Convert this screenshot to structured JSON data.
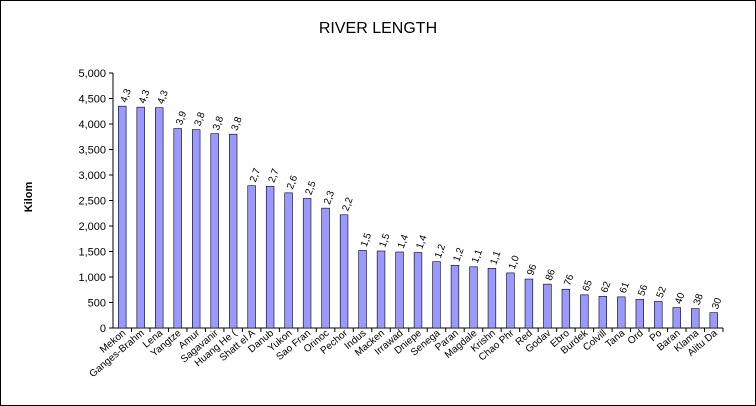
{
  "chart_data": {
    "type": "bar",
    "title": "RIVER LENGTH",
    "xlabel": "",
    "ylabel": "Kilom",
    "ylim": [
      0,
      5000
    ],
    "yticks": [
      "0",
      "500",
      "1,000",
      "1,500",
      "2,000",
      "2,500",
      "3,000",
      "3,500",
      "4,000",
      "4,500",
      "5,000"
    ],
    "grid": false,
    "legend": "none",
    "bar_color": "#9999ff",
    "categories": [
      "Mekong",
      "Ganges-Brahmaputra",
      "Lena",
      "Yangtze",
      "Amur",
      "Sagavanirktok",
      "Huang He (Yellow)",
      "Shatt el Arab",
      "Danube",
      "Yukon",
      "Sao Francisco",
      "Orinoco",
      "Pechora",
      "Indus",
      "Mackenzie",
      "Irrawaddy",
      "Dnieper",
      "Senegal",
      "Parana",
      "Magdalena",
      "Krishna",
      "Chao Phraya",
      "Red",
      "Godavari",
      "Ebro",
      "Burdekin",
      "Colville",
      "Tana",
      "Ord",
      "Po",
      "Baranof",
      "Klamath",
      "Alitu Dad"
    ],
    "category_labels": [
      "Mekon",
      "Ganges-Brahm",
      "Lena",
      "Yangtze",
      "Amur",
      "Sagavanir",
      "Huang He (",
      "Shatt el A",
      "Danub",
      "Yukon",
      "Sao Fran",
      "Orinoc",
      "Pechor",
      "Indus",
      "Macken",
      "Irrawad",
      "Dniepe",
      "Senega",
      "Paran",
      "Magdale",
      "Krishn",
      "Chao Phr",
      "Red",
      "Godav",
      "Ebro",
      "Burdek",
      "Colvill",
      "Tana",
      "Ord",
      "Po",
      "Baran",
      "Klama",
      "Alitu Da"
    ],
    "label_every": 1,
    "values": [
      4350,
      4330,
      4320,
      3910,
      3890,
      3810,
      3800,
      2790,
      2780,
      2650,
      2540,
      2350,
      2220,
      1520,
      1510,
      1490,
      1480,
      1300,
      1230,
      1200,
      1170,
      1080,
      960,
      860,
      760,
      650,
      620,
      610,
      560,
      520,
      400,
      380,
      300
    ],
    "data_labels": [
      "4,3",
      "4,3",
      "4,3",
      "3,9",
      "3,8",
      "3,8",
      "3,8",
      "2,7",
      "2,7",
      "2,6",
      "2,5",
      "2,3",
      "2,2",
      "1,5",
      "1,5",
      "1,4",
      "1,4",
      "1,2",
      "1,2",
      "1,1",
      "1,1",
      "1,0",
      "96",
      "86",
      "76",
      "65",
      "62",
      "61",
      "56",
      "52",
      "40",
      "38",
      "30"
    ]
  }
}
